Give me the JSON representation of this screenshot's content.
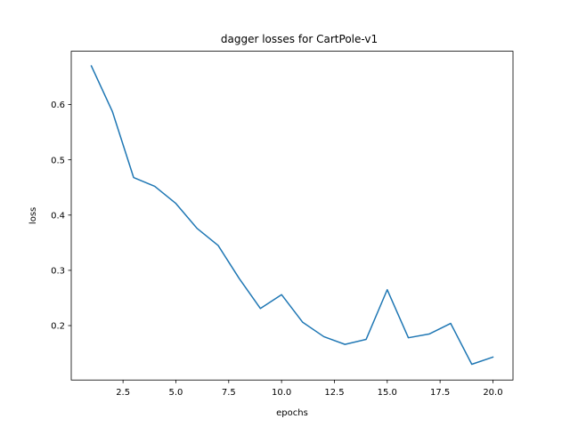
{
  "chart_data": {
    "type": "line",
    "title": "dagger losses for CartPole-v1",
    "xlabel": "epochs",
    "ylabel": "loss",
    "xlim": [
      0.05,
      20.95
    ],
    "ylim": [
      0.1015,
      0.6965
    ],
    "x_ticks": [
      2.5,
      5.0,
      7.5,
      10.0,
      12.5,
      15.0,
      17.5,
      20.0
    ],
    "x_tick_labels": [
      "2.5",
      "5.0",
      "7.5",
      "10.0",
      "12.5",
      "15.0",
      "17.5",
      "20.0"
    ],
    "y_ticks": [
      0.2,
      0.3,
      0.4,
      0.5,
      0.6
    ],
    "y_tick_labels": [
      "0.2",
      "0.3",
      "0.4",
      "0.5",
      "0.6"
    ],
    "grid": false,
    "legend": "none",
    "series": [
      {
        "color": "#1f77b4",
        "x": [
          1,
          2,
          3,
          4,
          5,
          6,
          7,
          8,
          9,
          10,
          11,
          12,
          13,
          14,
          15,
          16,
          17,
          18,
          19,
          20
        ],
        "y": [
          0.67,
          0.587,
          0.468,
          0.452,
          0.421,
          0.376,
          0.345,
          0.285,
          0.231,
          0.256,
          0.206,
          0.18,
          0.166,
          0.175,
          0.265,
          0.178,
          0.185,
          0.204,
          0.13,
          0.143
        ]
      }
    ]
  }
}
